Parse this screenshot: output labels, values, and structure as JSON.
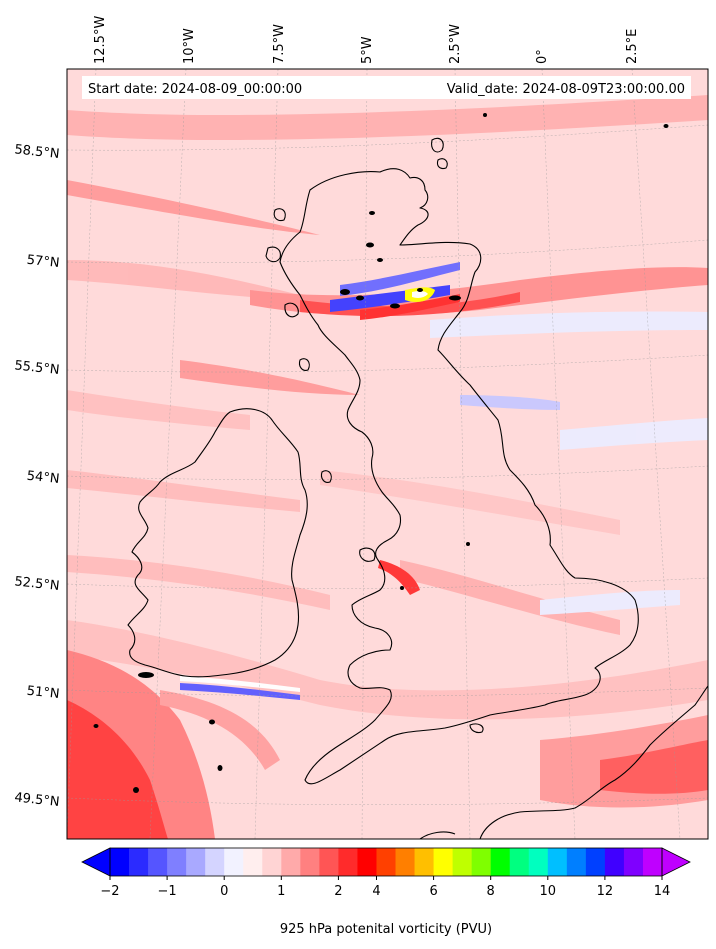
{
  "header": {
    "start_date": "Start date: 2024-08-09_00:00:00",
    "valid_date": "Valid_date: 2024-08-09T23:00:00.00"
  },
  "longitude_labels": [
    "12.5°W",
    "10°W",
    "7.5°W",
    "5°W",
    "2.5°W",
    "0°",
    "2.5°E"
  ],
  "latitude_labels": [
    "58.5°N",
    "57°N",
    "55.5°N",
    "54°N",
    "52.5°N",
    "51°N",
    "49.5°N"
  ],
  "colorbar": {
    "label": "925 hPa potenital vorticity (PVU)",
    "tick_labels": [
      "−2",
      "−1",
      "0",
      "1",
      "2",
      "4",
      "6",
      "8",
      "10",
      "12",
      "14"
    ],
    "colors": [
      "#0000ff",
      "#2b2bff",
      "#5555ff",
      "#7f7fff",
      "#a9a9ff",
      "#d4d4ff",
      "#f2f2ff",
      "#ffeeee",
      "#ffd4d4",
      "#ffaaaa",
      "#ff8080",
      "#ff5555",
      "#ff2b2b",
      "#ff0000",
      "#ff4000",
      "#ff7f00",
      "#ffbf00",
      "#ffff00",
      "#bfff00",
      "#7fff00",
      "#00ff00",
      "#00ff80",
      "#00ffbf",
      "#00bfff",
      "#007fff",
      "#0040ff",
      "#4000ff",
      "#7f00ff",
      "#bf00ff"
    ]
  },
  "map_colors": {
    "background": "#ffdada",
    "stripe_light": "#ffbcbc",
    "stripe_medium": "#ff9090",
    "stripe_strong": "#ff4a4a",
    "blue_light": "#e9e9ff",
    "blue_strong": "#3a3aff",
    "coastline": "#000000"
  }
}
